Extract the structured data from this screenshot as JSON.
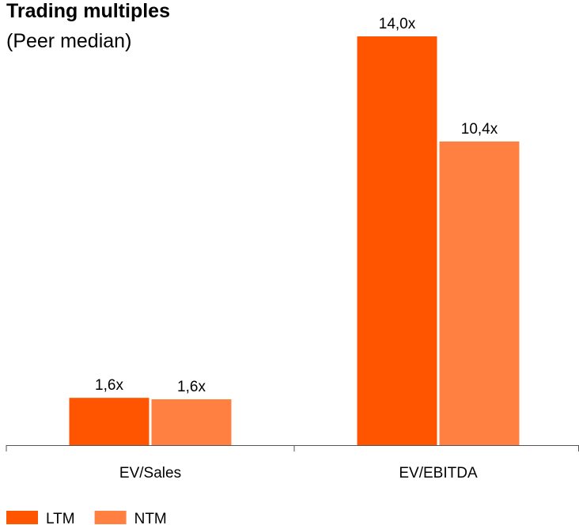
{
  "chart_data": {
    "type": "bar",
    "title": "Trading multiples",
    "subtitle": "(Peer median)",
    "categories": [
      "EV/Sales",
      "EV/EBITDA"
    ],
    "series": [
      {
        "name": "LTM",
        "color": "#ff5500",
        "values": [
          1.62,
          14.0
        ],
        "value_labels": [
          "1,6x",
          "14,0x"
        ]
      },
      {
        "name": "NTM",
        "color": "#ff8040",
        "values": [
          1.57,
          10.4
        ],
        "value_labels": [
          "1,6x",
          "10,4x"
        ]
      }
    ],
    "ylim": [
      0,
      14
    ]
  }
}
